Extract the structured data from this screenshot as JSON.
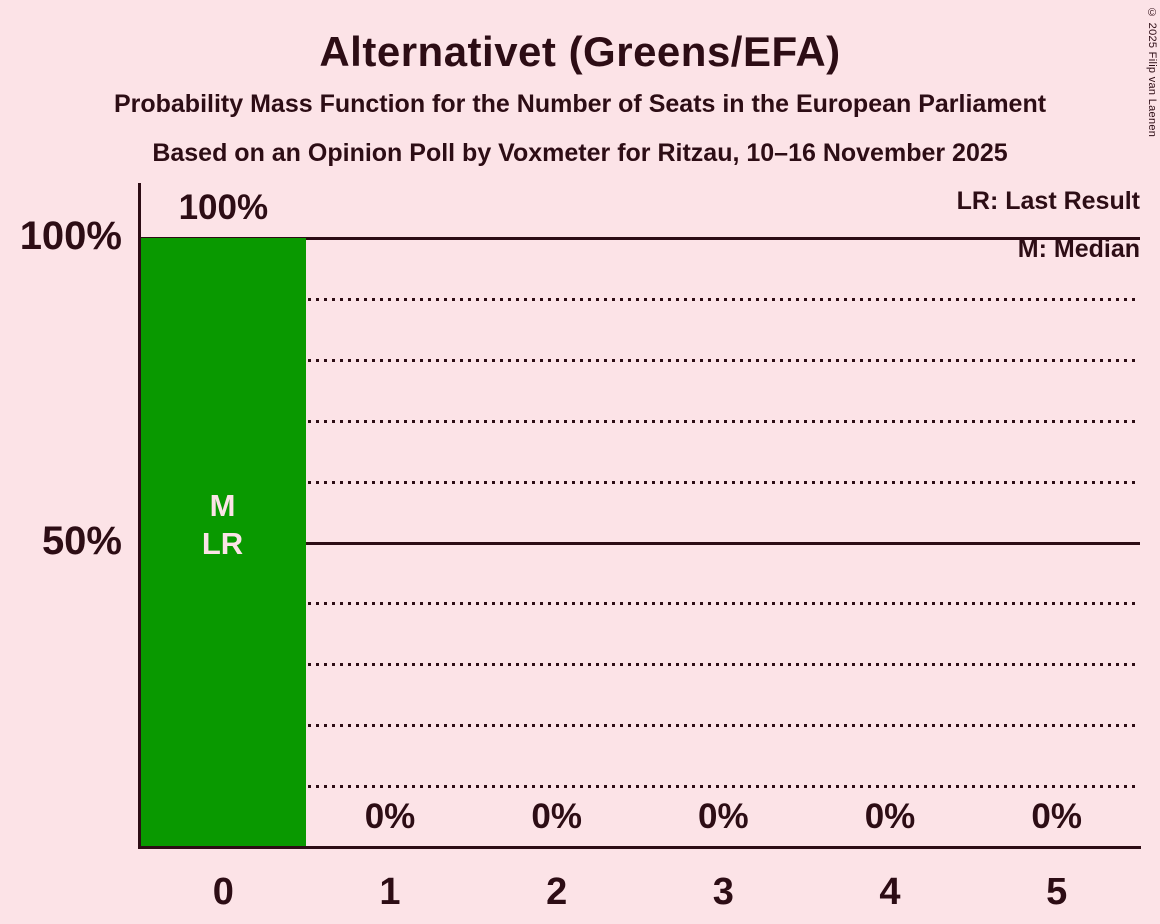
{
  "page": {
    "background_color": "#FCE3E7",
    "text_color": "#2D0D15"
  },
  "header": {
    "title": "Alternativet (Greens/EFA)",
    "subtitle1": "Probability Mass Function for the Number of Seats in the European Parliament",
    "subtitle2": "Based on an Opinion Poll by Voxmeter for Ritzau, 10–16 November 2025"
  },
  "legend": {
    "lr_label": "LR: Last Result",
    "m_label": "M: Median"
  },
  "copyright": "© 2025 Filip van Laenen",
  "chart_data": {
    "type": "bar",
    "title": "Alternativet (Greens/EFA)",
    "categories": [
      "0",
      "1",
      "2",
      "3",
      "4",
      "5"
    ],
    "values": [
      100,
      0,
      0,
      0,
      0,
      0
    ],
    "bar_labels": [
      "100%",
      "0%",
      "0%",
      "0%",
      "0%",
      "0%"
    ],
    "ylim": [
      0,
      100
    ],
    "yticks": [
      {
        "value": 100,
        "label": "100%"
      },
      {
        "value": 50,
        "label": "50%"
      }
    ],
    "dotted_gridlines_percent": [
      90,
      80,
      70,
      60,
      40,
      30,
      20,
      10
    ],
    "solid_gridlines_percent": [
      100,
      50
    ],
    "grid": "horizontal dotted lines every 10%, solid at 50% and 100%",
    "legend_position": "top-right",
    "bar_color": "#099900",
    "bar_annotation": [
      "M",
      "LR"
    ],
    "median_seats": 0,
    "last_result_seats": 0
  }
}
